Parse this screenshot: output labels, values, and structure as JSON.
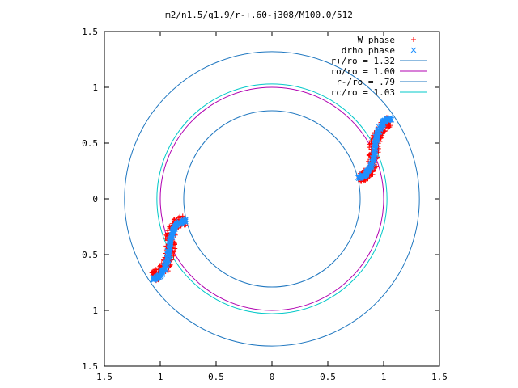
{
  "chart_data": {
    "type": "scatter",
    "title": "m2/n1.5/q1.9/r-+.60-j308/M100.0/512",
    "xlim": [
      -1.5,
      1.5
    ],
    "ylim": [
      -1.5,
      1.5
    ],
    "xticks": [
      -1.5,
      -1,
      -0.5,
      0,
      0.5,
      1,
      1.5
    ],
    "yticks": [
      -1.5,
      -1,
      -0.5,
      0,
      0.5,
      1,
      1.5
    ],
    "xtick_labels": [
      "1.5",
      "1",
      "0.5",
      "0",
      "0.5",
      "1",
      "1.5"
    ],
    "ytick_labels": [
      "1.5",
      "1",
      "0.5",
      "0",
      "0.5",
      "1",
      "1.5"
    ],
    "grid": false,
    "legend_position": "top-right",
    "circles": [
      {
        "name": "r+/ro = 1.32",
        "radius": 1.32,
        "color": "#1f77c0"
      },
      {
        "name": "ro/ro = 1.00",
        "radius": 1.0,
        "color": "#b000b0"
      },
      {
        "name": "r-/ro = .79",
        "radius": 0.79,
        "color": "#1f77c0"
      },
      {
        "name": "rc/ro = 1.03",
        "radius": 1.03,
        "color": "#00c8c8"
      }
    ],
    "series": [
      {
        "name": "W phase",
        "marker": "+",
        "color": "#ff0000",
        "arms": [
          {
            "curve": [
              [
                0.78,
                0.19
              ],
              [
                0.83,
                0.2
              ],
              [
                0.88,
                0.25
              ],
              [
                0.91,
                0.35
              ],
              [
                0.91,
                0.45
              ],
              [
                0.93,
                0.55
              ],
              [
                0.97,
                0.63
              ],
              [
                1.03,
                0.68
              ],
              [
                1.06,
                0.7
              ]
            ],
            "spread": 0.045
          },
          {
            "curve": [
              [
                -0.78,
                -0.19
              ],
              [
                -0.83,
                -0.2
              ],
              [
                -0.88,
                -0.25
              ],
              [
                -0.91,
                -0.35
              ],
              [
                -0.91,
                -0.45
              ],
              [
                -0.93,
                -0.55
              ],
              [
                -0.97,
                -0.63
              ],
              [
                -1.03,
                -0.68
              ],
              [
                -1.06,
                -0.7
              ]
            ],
            "spread": 0.045
          }
        ]
      },
      {
        "name": "drho phase",
        "marker": "x",
        "color": "#1e90ff",
        "arms": [
          {
            "curve": [
              [
                0.77,
                0.19
              ],
              [
                0.84,
                0.22
              ],
              [
                0.89,
                0.3
              ],
              [
                0.92,
                0.42
              ],
              [
                0.93,
                0.53
              ],
              [
                0.96,
                0.63
              ],
              [
                1.01,
                0.7
              ],
              [
                1.07,
                0.72
              ]
            ],
            "spread": 0.012
          },
          {
            "curve": [
              [
                -0.77,
                -0.19
              ],
              [
                -0.84,
                -0.22
              ],
              [
                -0.89,
                -0.3
              ],
              [
                -0.92,
                -0.42
              ],
              [
                -0.93,
                -0.53
              ],
              [
                -0.96,
                -0.63
              ],
              [
                -1.01,
                -0.7
              ],
              [
                -1.07,
                -0.72
              ]
            ],
            "spread": 0.012
          }
        ]
      }
    ]
  }
}
